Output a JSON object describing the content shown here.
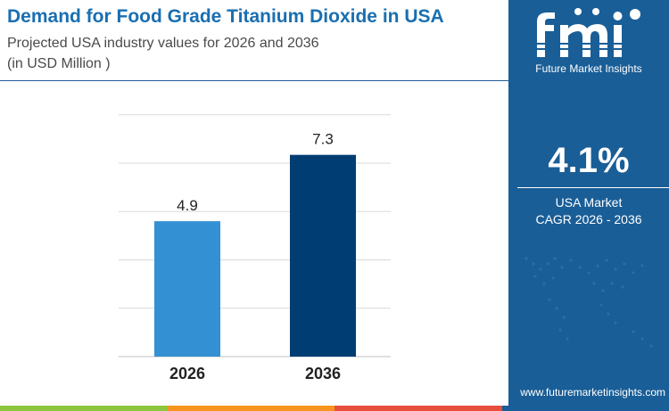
{
  "header": {
    "title": "Demand for Food Grade Titanium Dioxide in USA",
    "subtitle": "Projected USA industry values for 2026 and 2036",
    "unit_note": "(in USD Million )"
  },
  "chart_data": {
    "type": "bar",
    "categories": [
      "2026",
      "2036"
    ],
    "values": [
      4.9,
      7.3
    ],
    "value_labels": [
      "4.9",
      "7.3"
    ],
    "bar_colors": [
      "#3390d3",
      "#003d73"
    ],
    "grid": true,
    "ylim": [
      0,
      9
    ]
  },
  "sidebar": {
    "brand_name": "Future Market Insights",
    "logo_alt": "fmi",
    "cagr_value": "4.1%",
    "cagr_line1": "USA Market",
    "cagr_line2": "CAGR 2026 - 2036",
    "website": "www.futuremarketinsights.com"
  },
  "colors": {
    "accent_blue": "#1a6fb1",
    "panel_blue": "#1a5e97",
    "strip": [
      "#8cc63f",
      "#f7941d",
      "#e84e3c",
      "#1a5e97"
    ]
  }
}
